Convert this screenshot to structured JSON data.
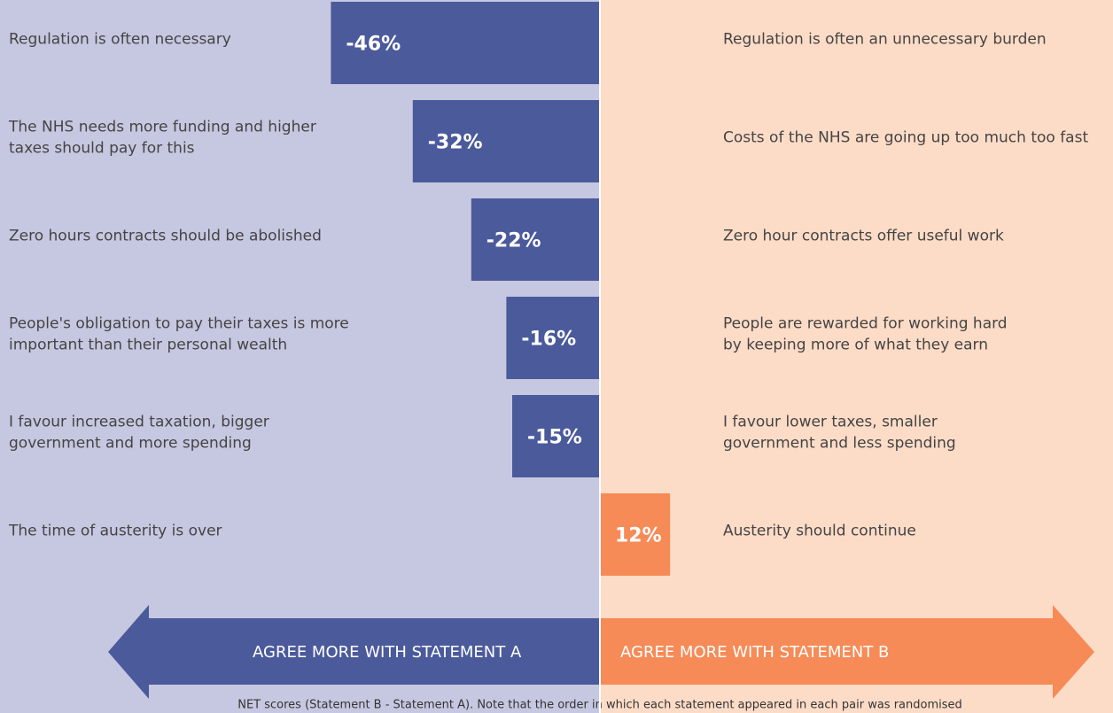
{
  "chart_data": {
    "type": "diverging-bar",
    "statements_a": [
      [
        "Regulation is often necessary"
      ],
      [
        "The NHS needs more funding and higher",
        "taxes should pay for this"
      ],
      [
        "Zero hours contracts should be abolished"
      ],
      [
        "People's obligation to pay their taxes is more",
        "important than their personal wealth"
      ],
      [
        "I favour increased taxation, bigger",
        "government and more spending"
      ],
      [
        "The time of austerity is over"
      ]
    ],
    "statements_b": [
      [
        "Regulation is often an unnecessary burden"
      ],
      [
        "Costs of the NHS are going up too much too fast"
      ],
      [
        "Zero hour contracts offer useful work"
      ],
      [
        "People are rewarded for working hard",
        "by keeping more of what they earn"
      ],
      [
        "I favour lower taxes, smaller",
        "government and less spending"
      ],
      [
        "Austerity should continue"
      ]
    ],
    "values": [
      -46,
      -32,
      -22,
      -16,
      -15,
      12
    ],
    "value_labels": [
      "-46%",
      "-32%",
      "-22%",
      "-16%",
      "-15%",
      "12%"
    ],
    "negative_color": "#4b5a9b",
    "positive_color": "#f68b57",
    "arrow_a_label": "AGREE MORE WITH STATEMENT A",
    "arrow_b_label": "AGREE MORE WITH STATEMENT B",
    "note": "NET scores (Statement B - Statement A). Note that the order in which each statement appeared in each pair was randomised"
  }
}
